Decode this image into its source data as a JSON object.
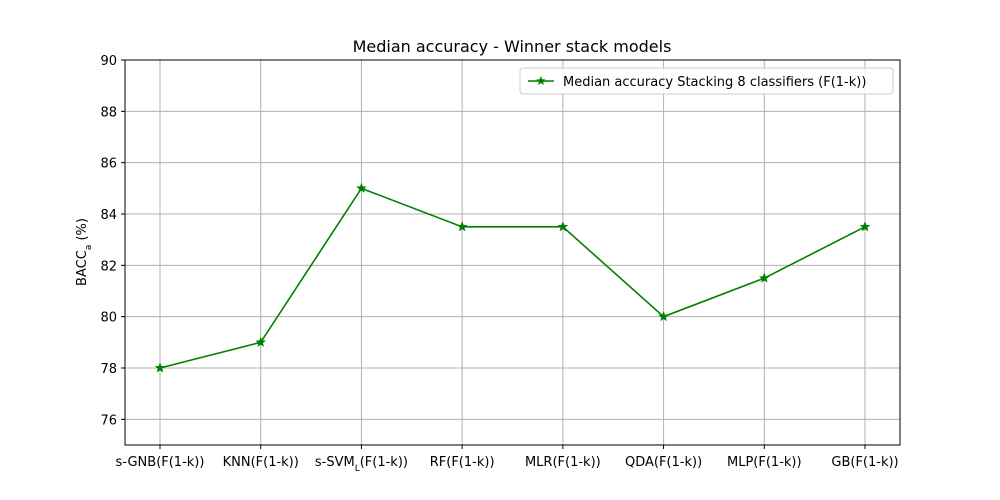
{
  "chart_data": {
    "type": "line",
    "title": "Median accuracy - Winner stack models",
    "xlabel": "",
    "ylabel": {
      "base": "BACC",
      "sub": "a",
      "rest": " (%)"
    },
    "categories": [
      {
        "base": "s-GNB(F(1-k))"
      },
      {
        "base": "KNN(F(1-k))"
      },
      {
        "base": "s-SVM",
        "sub": "L",
        "rest": "(F(1-k))"
      },
      {
        "base": "RF(F(1-k))"
      },
      {
        "base": "MLR(F(1-k))"
      },
      {
        "base": "QDA(F(1-k))"
      },
      {
        "base": "MLP(F(1-k))"
      },
      {
        "base": "GB(F(1-k))"
      }
    ],
    "series": [
      {
        "name": "Median accuracy Stacking 8 classifiers (F(1-k))",
        "values": [
          78,
          79,
          85,
          83.5,
          83.5,
          80,
          81.5,
          83.5
        ],
        "color": "#008000",
        "marker": "star"
      }
    ],
    "ylim": [
      75,
      90
    ],
    "yticks": [
      76,
      78,
      80,
      82,
      84,
      86,
      88,
      90
    ],
    "grid": true,
    "legend_position": "top-right"
  }
}
